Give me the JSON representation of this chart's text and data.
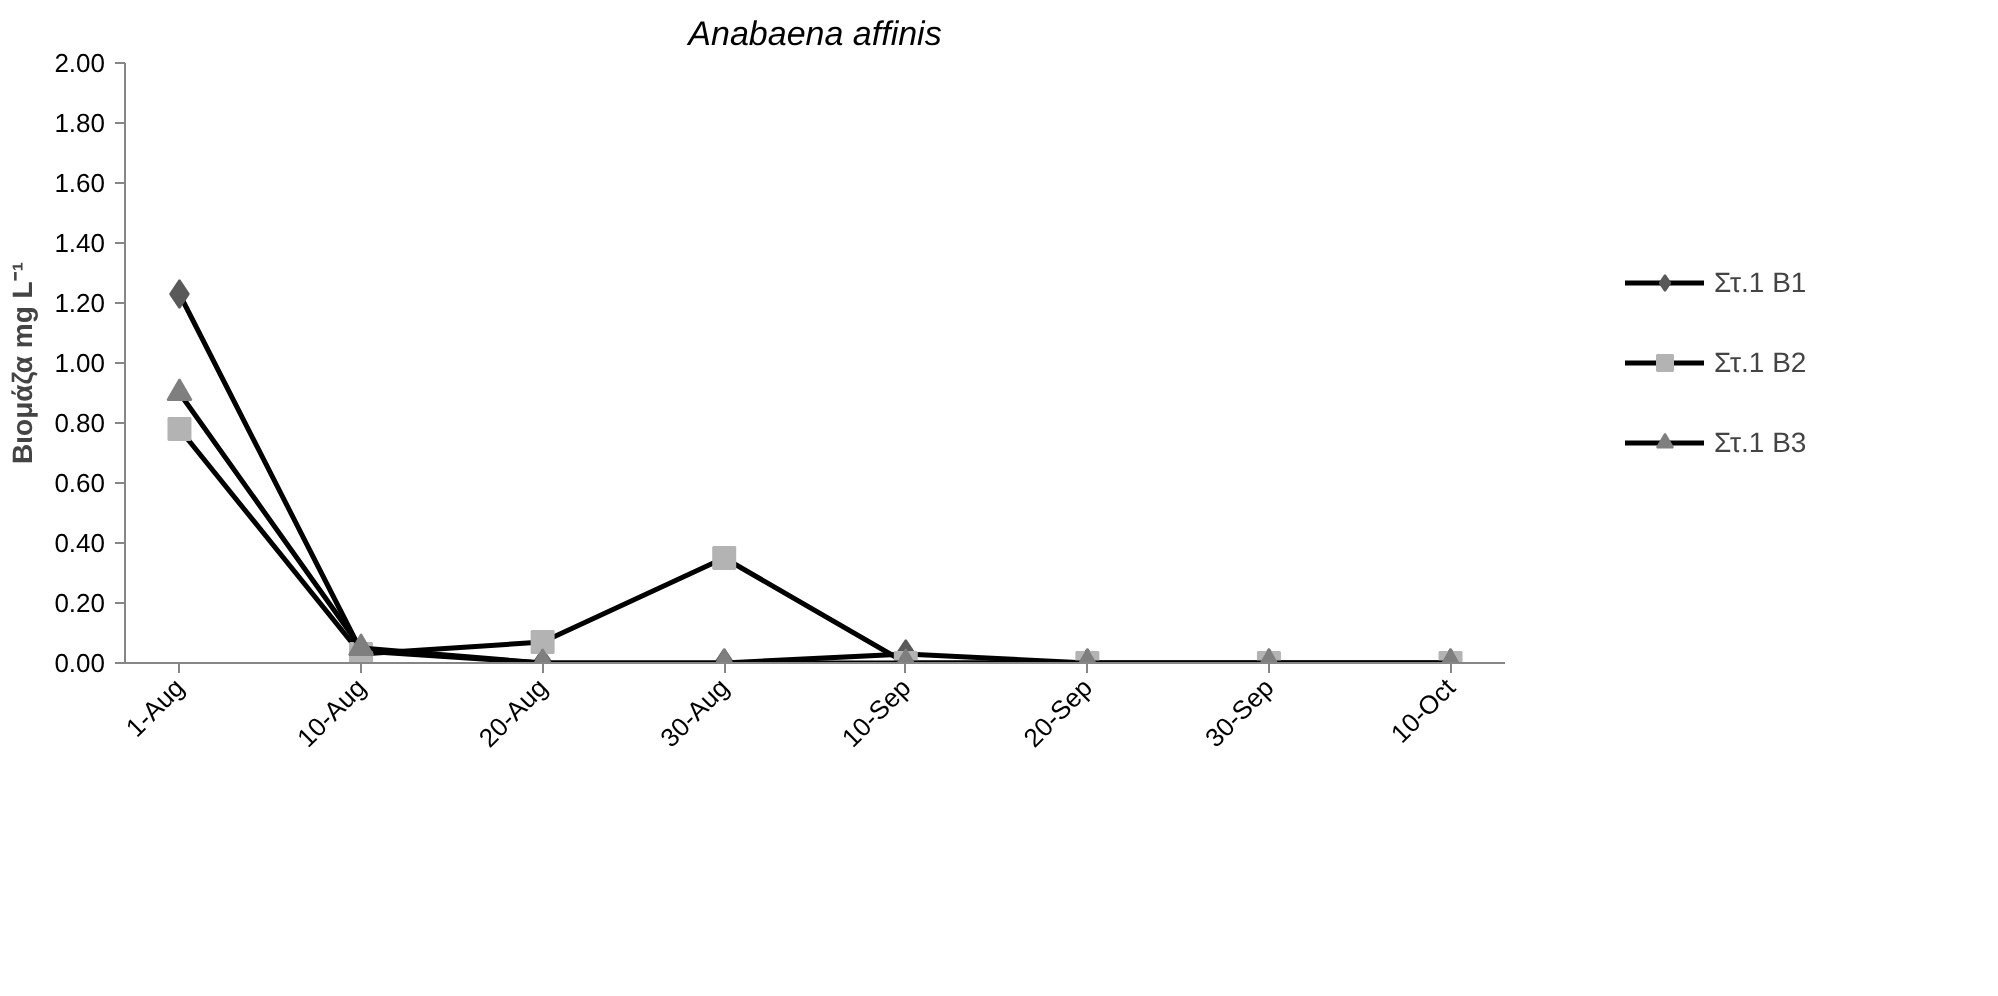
{
  "chart_data": {
    "type": "line",
    "title": "Anabaena affinis",
    "ylabel": "Βιομάζα mg L⁻¹",
    "categories": [
      "1-Aug",
      "10-Aug",
      "20-Aug",
      "30-Aug",
      "10-Sep",
      "20-Sep",
      "30-Sep",
      "10-Oct"
    ],
    "series": [
      {
        "name": "Στ.1 B1",
        "color": "#000000",
        "colors": [
          "#595959",
          "#595959",
          "#595959",
          "#595959",
          "#595959",
          "#595959",
          "#595959",
          "#595959"
        ],
        "marker": "diamond",
        "values": [
          1.23,
          0.04,
          0,
          0,
          0.03,
          0,
          0,
          0
        ]
      },
      {
        "name": "Στ.1 B2",
        "color": "#000000",
        "colors": [
          "#b3b3b3",
          "#b3b3b3",
          "#b3b3b3",
          "#b3b3b3",
          "#b3b3b3",
          "#b3b3b3",
          "#b3b3b3",
          "#b3b3b3"
        ],
        "marker": "square",
        "values": [
          0.78,
          0.03,
          0.07,
          0.35,
          0,
          0,
          0,
          0
        ]
      },
      {
        "name": "Στ.1 B3",
        "color": "#000000",
        "colors": [
          "#7f7f7f",
          "#7f7f7f",
          "#7f7f7f",
          "#7f7f7f",
          "#7f7f7f",
          "#7f7f7f",
          "#7f7f7f",
          "#7f7f7f"
        ],
        "marker": "triangle",
        "values": [
          0.9,
          0.05,
          0,
          0,
          0,
          0,
          0,
          0
        ]
      }
    ],
    "ylim": [
      0,
      2
    ],
    "yticks": [
      {
        "value": 0,
        "label": "0.00"
      },
      {
        "value": 0.2,
        "label": "0.20"
      },
      {
        "value": 0.4,
        "label": "0.40"
      },
      {
        "value": 0.6,
        "label": "0.60"
      },
      {
        "value": 0.8,
        "label": "0.80"
      },
      {
        "value": 1,
        "label": "1.00"
      },
      {
        "value": 1.2,
        "label": "1.20"
      },
      {
        "value": 1.4,
        "label": "1.40"
      },
      {
        "value": 1.6,
        "label": "1.60"
      },
      {
        "value": 1.8,
        "label": "1.80"
      },
      {
        "value": 2,
        "label": "2.00"
      }
    ],
    "grid": false,
    "legend": "right"
  }
}
